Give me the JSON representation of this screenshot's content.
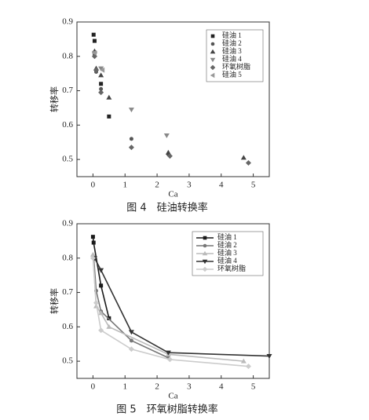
{
  "chart_data": [
    {
      "type": "scatter",
      "caption": "图 4　硅油转换率",
      "x_label": "Ca",
      "y_label": "转移率",
      "xlim": [
        -0.5,
        5.5
      ],
      "xticks": [
        0,
        1,
        2,
        3,
        4,
        5
      ],
      "ylim": [
        0.45,
        0.9
      ],
      "yticks": [
        0.5,
        0.6,
        0.7,
        0.8,
        0.9
      ],
      "legend": "top-right",
      "series": [
        {
          "name": "硅油 1",
          "marker": "square",
          "color": "#222222",
          "x": [
            0.02,
            0.05,
            0.25,
            0.5
          ],
          "values": [
            0.863,
            0.845,
            0.72,
            0.625
          ]
        },
        {
          "name": "硅油 2",
          "marker": "circle",
          "color": "#555555",
          "x": [
            0.05,
            0.1,
            0.25,
            1.2,
            2.35
          ],
          "values": [
            0.805,
            0.755,
            0.705,
            0.56,
            0.515
          ]
        },
        {
          "name": "硅油 3",
          "marker": "triangle-up",
          "color": "#444444",
          "x": [
            0.05,
            0.1,
            0.25,
            0.5,
            2.35,
            4.7
          ],
          "values": [
            0.815,
            0.765,
            0.745,
            0.68,
            0.52,
            0.505
          ]
        },
        {
          "name": "硅油 4",
          "marker": "triangle-down",
          "color": "#888888",
          "x": [
            0.05,
            0.25,
            1.2,
            2.3
          ],
          "values": [
            0.81,
            0.765,
            0.645,
            0.57
          ]
        },
        {
          "name": "环氧树脂",
          "marker": "diamond",
          "color": "#666666",
          "x": [
            0.05,
            0.1,
            0.25,
            1.2,
            2.4,
            4.85
          ],
          "values": [
            0.8,
            0.76,
            0.695,
            0.535,
            0.51,
            0.49
          ]
        },
        {
          "name": "硅油 5",
          "marker": "triangle-left",
          "color": "#999999",
          "x": [
            0.05,
            0.3
          ],
          "values": [
            0.81,
            0.76
          ]
        }
      ]
    },
    {
      "type": "line",
      "caption": "图 5　环氧树脂转换率",
      "x_label": "Ca",
      "y_label": "转移率",
      "xlim": [
        -0.5,
        5.5
      ],
      "xticks": [
        0,
        1,
        2,
        3,
        4,
        5
      ],
      "ylim": [
        0.45,
        0.9
      ],
      "yticks": [
        0.5,
        0.6,
        0.7,
        0.8,
        0.9
      ],
      "legend": "top-right",
      "series": [
        {
          "name": "硅油 1",
          "marker": "square",
          "color": "#1a1a1a",
          "x": [
            0,
            0.02,
            0.25,
            0.5
          ],
          "values": [
            0.862,
            0.845,
            0.72,
            0.625
          ]
        },
        {
          "name": "硅油 2",
          "marker": "circle",
          "color": "#777777",
          "x": [
            0.02,
            0.1,
            0.25,
            1.2,
            2.35
          ],
          "values": [
            0.805,
            0.705,
            0.645,
            0.56,
            0.51
          ]
        },
        {
          "name": "硅油 3",
          "marker": "triangle-up",
          "color": "#bbbbbb",
          "x": [
            0,
            0.1,
            0.25,
            0.5,
            2.35,
            4.7
          ],
          "values": [
            0.81,
            0.66,
            0.64,
            0.6,
            0.52,
            0.5
          ]
        },
        {
          "name": "硅油 4",
          "marker": "triangle-down",
          "color": "#333333",
          "x": [
            0.05,
            0.25,
            1.2,
            2.35,
            5.5
          ],
          "values": [
            0.8,
            0.765,
            0.585,
            0.525,
            0.515
          ]
        },
        {
          "name": "环氧树脂",
          "marker": "diamond",
          "color": "#cccccc",
          "x": [
            0,
            0.1,
            0.25,
            1.2,
            2.4,
            4.85
          ],
          "values": [
            0.8,
            0.67,
            0.59,
            0.535,
            0.505,
            0.485
          ]
        }
      ]
    }
  ]
}
